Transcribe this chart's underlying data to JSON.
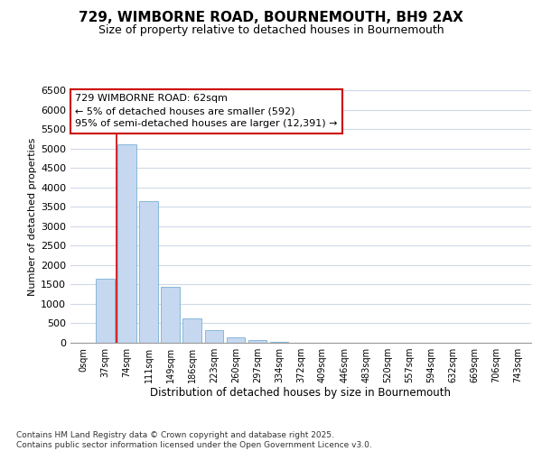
{
  "title1": "729, WIMBORNE ROAD, BOURNEMOUTH, BH9 2AX",
  "title2": "Size of property relative to detached houses in Bournemouth",
  "xlabel": "Distribution of detached houses by size in Bournemouth",
  "ylabel": "Number of detached properties",
  "categories": [
    "0sqm",
    "37sqm",
    "74sqm",
    "111sqm",
    "149sqm",
    "186sqm",
    "223sqm",
    "260sqm",
    "297sqm",
    "334sqm",
    "372sqm",
    "409sqm",
    "446sqm",
    "483sqm",
    "520sqm",
    "557sqm",
    "594sqm",
    "632sqm",
    "669sqm",
    "706sqm",
    "743sqm"
  ],
  "values": [
    0,
    1650,
    5100,
    3650,
    1450,
    620,
    320,
    150,
    70,
    20,
    5,
    2,
    1,
    0,
    0,
    0,
    0,
    0,
    0,
    0,
    0
  ],
  "bar_color": "#c5d8f0",
  "bar_edge_color": "#7aafd4",
  "red_line_bin": 2,
  "annotation_box_edgecolor": "#cc0000",
  "annotation_lines": [
    "729 WIMBORNE ROAD: 62sqm",
    "← 5% of detached houses are smaller (592)",
    "95% of semi-detached houses are larger (12,391) →"
  ],
  "ylim": [
    0,
    6500
  ],
  "yticks": [
    0,
    500,
    1000,
    1500,
    2000,
    2500,
    3000,
    3500,
    4000,
    4500,
    5000,
    5500,
    6000,
    6500
  ],
  "bg_color": "#ffffff",
  "plot_bg_color": "#ffffff",
  "grid_color": "#d0d8e8",
  "footer1": "Contains HM Land Registry data © Crown copyright and database right 2025.",
  "footer2": "Contains public sector information licensed under the Open Government Licence v3.0."
}
